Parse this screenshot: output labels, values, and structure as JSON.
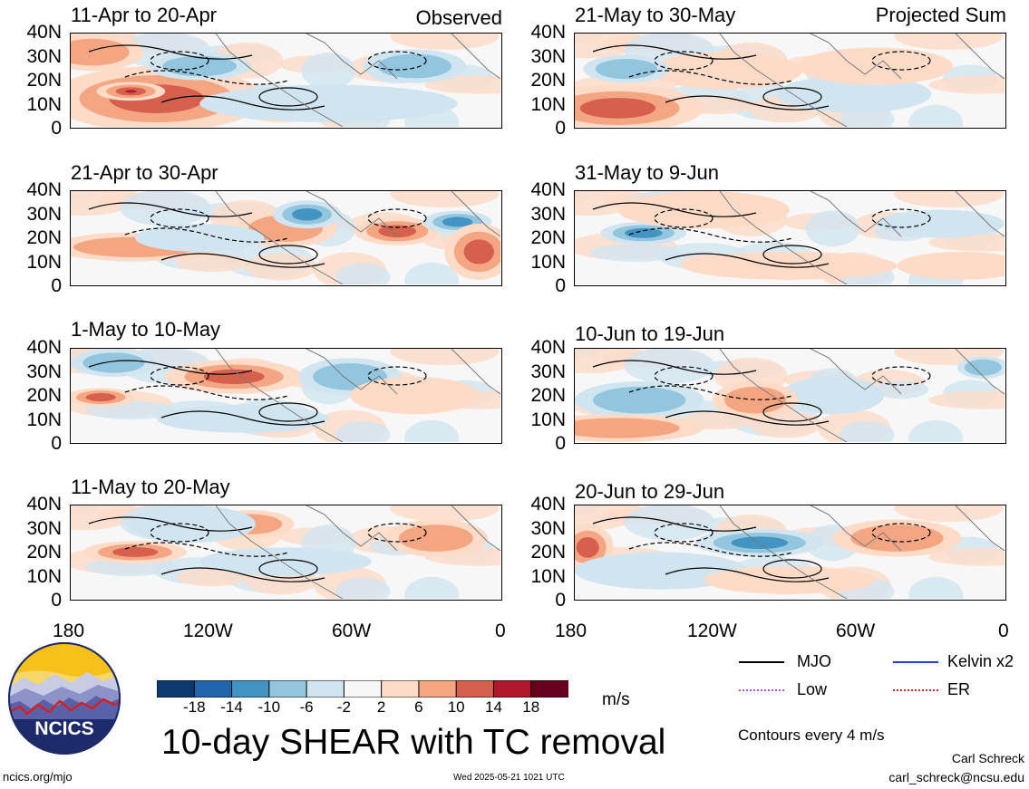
{
  "panels_left": [
    {
      "title": "11-Apr to 20-Apr",
      "tag": "Observed"
    },
    {
      "title": "21-Apr to 30-Apr",
      "tag": ""
    },
    {
      "title": "1-May to 10-May",
      "tag": ""
    },
    {
      "title": "11-May to 20-May",
      "tag": ""
    }
  ],
  "panels_right": [
    {
      "title": "21-May to 30-May",
      "tag": "Projected Sum"
    },
    {
      "title": "31-May to 9-Jun",
      "tag": ""
    },
    {
      "title": "10-Jun to 19-Jun",
      "tag": ""
    },
    {
      "title": "20-Jun to 29-Jun",
      "tag": ""
    }
  ],
  "lat_labels": [
    "40N",
    "30N",
    "20N",
    "10N",
    "0"
  ],
  "lon_labels": [
    "180",
    "120W",
    "60W",
    "0"
  ],
  "colorbar": {
    "ticks": [
      "-18",
      "-14",
      "-10",
      "-6",
      "-2",
      "2",
      "6",
      "10",
      "14",
      "18"
    ],
    "colors": [
      "#0b3a6f",
      "#2166ac",
      "#4393c3",
      "#92c5de",
      "#d1e5f0",
      "#f7f7f7",
      "#fddbc7",
      "#f4a582",
      "#d6604d",
      "#b2182b",
      "#67001f"
    ],
    "units": "m/s"
  },
  "legend": {
    "items": [
      {
        "label": "MJO",
        "color": "#000000"
      },
      {
        "label": "Kelvin x2",
        "color": "#1f3fd6"
      },
      {
        "label": "Low",
        "color": "#a64fd9"
      },
      {
        "label": "ER",
        "color": "#d62020"
      }
    ],
    "contour_note": "Contours every 4 m/s"
  },
  "main_title": "10-day SHEAR with TC removal",
  "logo": {
    "text": "NCICS"
  },
  "footer": {
    "url": "ncics.org/mjo",
    "timestamp": "Wed 2025-05-21 1021 UTC",
    "author": "Carl Schreck",
    "email": "carl_schreck@ncsu.edu"
  }
}
